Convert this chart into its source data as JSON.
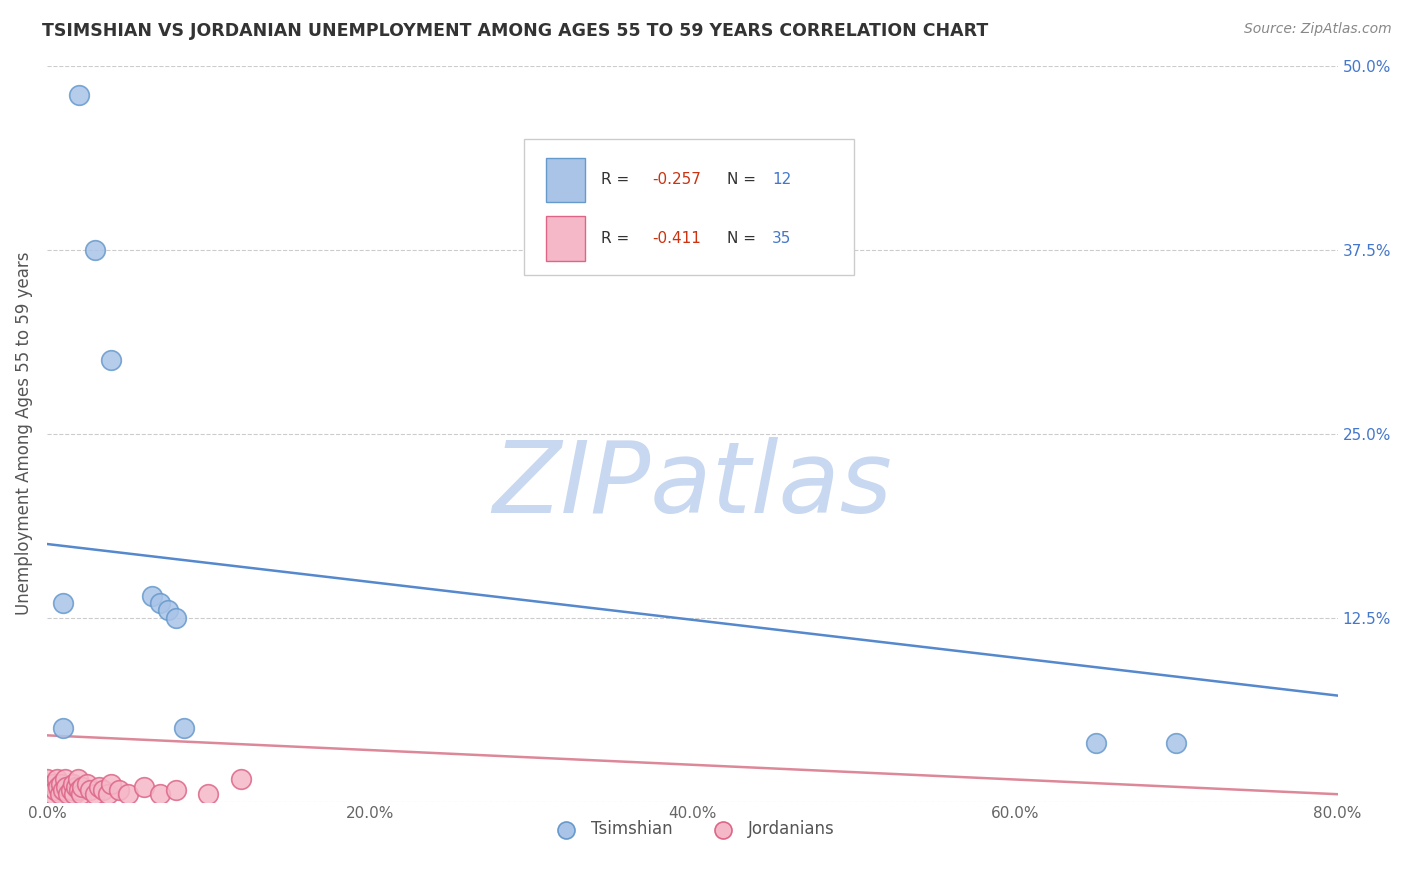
{
  "title": "TSIMSHIAN VS JORDANIAN UNEMPLOYMENT AMONG AGES 55 TO 59 YEARS CORRELATION CHART",
  "source_text": "Source: ZipAtlas.com",
  "ylabel": "Unemployment Among Ages 55 to 59 years",
  "xlim": [
    0.0,
    0.8
  ],
  "ylim": [
    0.0,
    0.5
  ],
  "xticks": [
    0.0,
    0.2,
    0.4,
    0.6,
    0.8
  ],
  "xticklabels": [
    "0.0%",
    "20.0%",
    "40.0%",
    "60.0%",
    "80.0%"
  ],
  "yticks": [
    0.0,
    0.125,
    0.25,
    0.375,
    0.5
  ],
  "yticklabels": [
    "",
    "12.5%",
    "25.0%",
    "37.5%",
    "50.0%"
  ],
  "background_color": "#ffffff",
  "grid_color": "#cccccc",
  "watermark": "ZIPatlas",
  "watermark_color": "#c8d8f0",
  "tsimshian_x": [
    0.02,
    0.03,
    0.04,
    0.065,
    0.07,
    0.075,
    0.08,
    0.085,
    0.01,
    0.01,
    0.65,
    0.7
  ],
  "tsimshian_y": [
    0.48,
    0.375,
    0.3,
    0.14,
    0.135,
    0.13,
    0.125,
    0.05,
    0.135,
    0.05,
    0.04,
    0.04
  ],
  "tsimshian_color": "#aac4e8",
  "tsimshian_edge_color": "#6699cc",
  "tsimshian_R": -0.257,
  "tsimshian_N": 12,
  "tsimshian_line_color": "#5588cc",
  "tsimshian_line_start_y": 0.175,
  "tsimshian_line_end_y": 0.072,
  "jordanian_x": [
    0.0,
    0.002,
    0.003,
    0.004,
    0.005,
    0.006,
    0.007,
    0.008,
    0.009,
    0.01,
    0.011,
    0.012,
    0.013,
    0.015,
    0.016,
    0.017,
    0.018,
    0.019,
    0.02,
    0.021,
    0.022,
    0.025,
    0.027,
    0.03,
    0.032,
    0.035,
    0.038,
    0.04,
    0.045,
    0.05,
    0.06,
    0.07,
    0.08,
    0.1,
    0.12
  ],
  "jordanian_y": [
    0.015,
    0.01,
    0.005,
    0.012,
    0.008,
    0.015,
    0.01,
    0.005,
    0.012,
    0.008,
    0.015,
    0.01,
    0.005,
    0.008,
    0.012,
    0.005,
    0.01,
    0.015,
    0.008,
    0.005,
    0.01,
    0.012,
    0.008,
    0.005,
    0.01,
    0.008,
    0.005,
    0.012,
    0.008,
    0.005,
    0.01,
    0.005,
    0.008,
    0.005,
    0.015
  ],
  "jordanian_color": "#f5b8c8",
  "jordanian_edge_color": "#dd6688",
  "jordanian_R": -0.411,
  "jordanian_N": 35,
  "jordanian_line_color": "#dd8899",
  "jordanian_line_start_y": 0.045,
  "jordanian_line_end_y": 0.005,
  "legend_tsimshian_color": "#aac4e8",
  "legend_jordanian_color": "#f5b8c8",
  "legend_R_color": "#cc3311",
  "legend_N_color": "#4477cc"
}
